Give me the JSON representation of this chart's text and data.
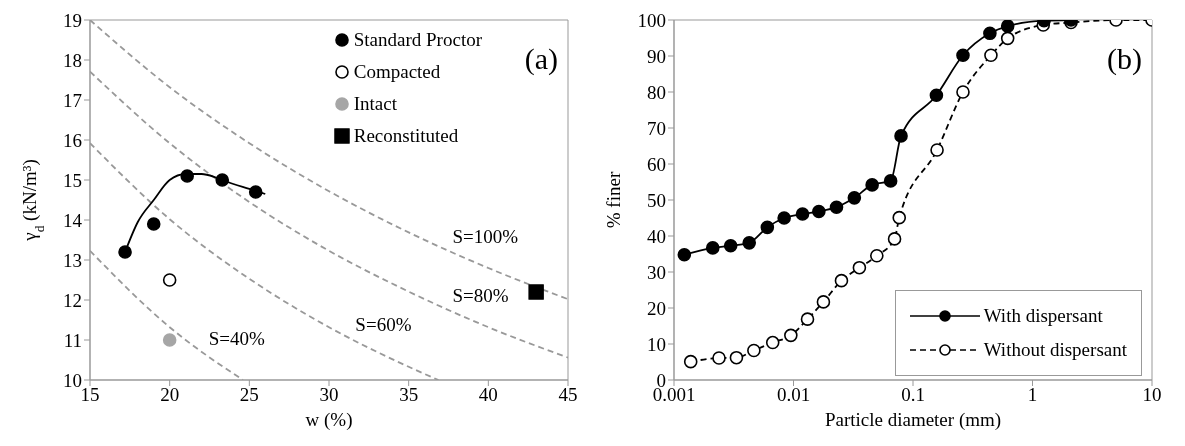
{
  "chart_data": [
    {
      "type": "scatter",
      "xlabel": "w (%)",
      "ylabel": "γ$_{d}$ (kN/m³)",
      "xlim": [
        15,
        45
      ],
      "xticks": [
        15,
        20,
        25,
        30,
        35,
        40,
        45
      ],
      "ylim": [
        10,
        19
      ],
      "yticks": [
        10,
        11,
        12,
        13,
        14,
        15,
        16,
        17,
        18,
        19
      ],
      "legend": "top right",
      "annotations": [
        "(a)"
      ],
      "series": [
        {
          "name": "Standard Proctor",
          "color": "#000000",
          "marker": "circle",
          "x": [
            17.2,
            19,
            21.1,
            23.3,
            25.4
          ],
          "values": [
            13.2,
            13.9,
            15.1,
            15.0,
            14.7
          ]
        },
        {
          "name": "Compacted",
          "color": "#ffffff",
          "marker": "circle",
          "x": [
            20
          ],
          "values": [
            12.5
          ]
        },
        {
          "name": "Intact",
          "color": "#a6a6a6",
          "marker": "circle",
          "x": [
            20
          ],
          "values": [
            11.0
          ]
        },
        {
          "name": "Reconstituted",
          "color": "#000000",
          "marker": "square",
          "x": [
            43
          ],
          "values": [
            12.2
          ]
        },
        {
          "type": "line",
          "color": "#000000",
          "marker": "none",
          "line_style": "solid",
          "x": [
            17.2,
            18,
            19,
            20,
            21,
            22,
            23,
            24,
            25,
            26
          ],
          "values": [
            13.2,
            13.95,
            14.5,
            15.0,
            15.15,
            15.15,
            15.05,
            14.9,
            14.78,
            14.65
          ]
        },
        {
          "name": "S=100%",
          "type": "line",
          "color": "#999999",
          "marker": "none",
          "line_style": "dashed",
          "x": [
            15,
            20,
            25,
            30,
            35,
            40,
            45
          ],
          "values": [
            19.0,
            17.32,
            15.92,
            14.72,
            13.69,
            12.8,
            12.02
          ]
        },
        {
          "name": "S=80%",
          "type": "line",
          "color": "#999999",
          "marker": "none",
          "line_style": "dashed",
          "x": [
            15,
            20,
            25,
            30,
            35,
            40,
            45
          ],
          "values": [
            17.71,
            15.92,
            14.45,
            13.23,
            12.21,
            11.32,
            10.56
          ]
        },
        {
          "name": "S=60%",
          "type": "line",
          "color": "#999999",
          "marker": "none",
          "line_style": "dashed",
          "x": [
            15,
            20,
            25,
            30,
            35,
            36.87
          ],
          "values": [
            15.92,
            14.02,
            12.53,
            11.32,
            10.33,
            10.0
          ]
        },
        {
          "name": "S=40%",
          "type": "line",
          "color": "#999999",
          "marker": "none",
          "line_style": "dashed",
          "x": [
            15,
            20,
            24.6
          ],
          "values": [
            13.23,
            11.32,
            10.0
          ]
        }
      ]
    },
    {
      "type": "line",
      "xlabel": "Particle diameter (mm)",
      "ylabel": "% finer",
      "log": "x",
      "xlim": [
        0.001,
        10
      ],
      "xticks": [
        0.001,
        0.01,
        0.1,
        1,
        10
      ],
      "ylim": [
        0,
        100
      ],
      "yticks": [
        0,
        10,
        20,
        30,
        40,
        50,
        60,
        70,
        80,
        90,
        100
      ],
      "legend": "bottom right",
      "annotations": [
        "(b)"
      ],
      "series": [
        {
          "name": "With dispersant",
          "color": "#000000",
          "marker": "circle",
          "line_style": "solid",
          "x": [
            0.00122,
            0.00211,
            0.00298,
            0.00426,
            0.00604,
            0.00835,
            0.0119,
            0.0163,
            0.0229,
            0.0323,
            0.0455,
            0.065,
            0.0794,
            0.157,
            0.262,
            0.44,
            0.62,
            1.25,
            2.1
          ],
          "values": [
            34.8,
            36.7,
            37.3,
            38.1,
            42.4,
            45.0,
            46.1,
            46.8,
            48.0,
            50.6,
            54.2,
            55.3,
            67.8,
            79.1,
            90.2,
            96.3,
            98.3,
            99.8,
            100
          ]
        },
        {
          "name": "Without dispersant",
          "color": "#000000",
          "marker": "circle",
          "line_style": "dashed",
          "x": [
            0.00138,
            0.00238,
            0.00333,
            0.00466,
            0.0067,
            0.0095,
            0.0131,
            0.0178,
            0.0252,
            0.0356,
            0.0498,
            0.0701,
            0.0767,
            0.159,
            0.262,
            0.449,
            0.62,
            1.23,
            2.1,
            5.0,
            10
          ],
          "values": [
            5.1,
            6.1,
            6.2,
            8.2,
            10.4,
            12.4,
            16.9,
            21.7,
            27.6,
            31.2,
            34.5,
            39.2,
            45.1,
            63.9,
            80.0,
            90.2,
            94.9,
            98.6,
            99.3,
            100,
            100
          ]
        }
      ]
    }
  ]
}
